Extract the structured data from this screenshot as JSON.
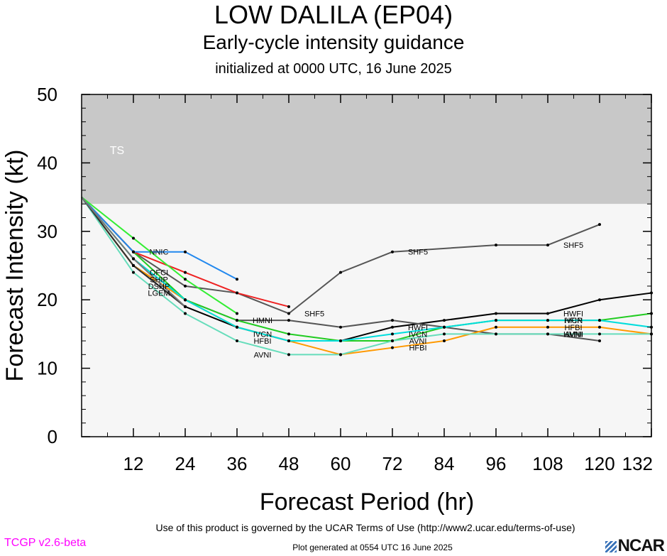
{
  "header": {
    "title": "LOW DALILA (EP04)",
    "subtitle": "Early-cycle intensity guidance",
    "init": "initialized at 0000 UTC, 16 June 2025"
  },
  "footer": {
    "terms": "Use of this product is governed by the UCAR Terms of Use (http://www2.ucar.edu/terms-of-use)",
    "version": "TCGP v2.6-beta",
    "generated": "Plot generated at 0554 UTC   16 June 2025",
    "logo": "NCAR"
  },
  "chart_data": {
    "type": "line",
    "xlabel": "Forecast Period (hr)",
    "ylabel": "Forecast Intensity (kt)",
    "xlim": [
      0,
      132
    ],
    "ylim": [
      0,
      50
    ],
    "xticks": [
      12,
      24,
      36,
      48,
      60,
      72,
      84,
      96,
      108,
      120,
      132
    ],
    "yticks": [
      0,
      10,
      20,
      30,
      40,
      50
    ],
    "bands": [
      {
        "label": "TS",
        "from": 34,
        "to": 50,
        "color": "#c8c8c8"
      },
      {
        "label": "",
        "from": 0,
        "to": 34,
        "color": "#f6f6f6"
      }
    ],
    "series": [
      {
        "name": "SHF5",
        "color": "#555555",
        "x": [
          0,
          12,
          24,
          36,
          48,
          60,
          72,
          96,
          108,
          120
        ],
        "y": [
          35,
          27,
          22,
          21,
          18,
          24,
          27,
          28,
          28,
          31
        ],
        "labels": [
          {
            "x": 48,
            "y": 18
          },
          {
            "x": 72,
            "y": 27
          },
          {
            "x": 108,
            "y": 28
          }
        ]
      },
      {
        "name": "HWFI",
        "color": "#000000",
        "x": [
          0,
          12,
          24,
          36,
          48,
          60,
          72,
          84,
          96,
          108,
          120,
          132
        ],
        "y": [
          35,
          25,
          19,
          16,
          14,
          14,
          16,
          17,
          18,
          18,
          20,
          21
        ],
        "labels": [
          {
            "x": 72,
            "y": 16
          },
          {
            "x": 108,
            "y": 18
          }
        ]
      },
      {
        "name": "HMNI",
        "color": "#555555",
        "x": [
          0,
          12,
          24,
          36,
          48,
          60,
          72,
          84,
          96,
          108,
          120
        ],
        "y": [
          35,
          25,
          20,
          17,
          17,
          16,
          17,
          16,
          15,
          15,
          14
        ],
        "labels": [
          {
            "x": 36,
            "y": 17
          },
          {
            "x": 108,
            "y": 15
          }
        ]
      },
      {
        "name": "IVCN",
        "color": "#22cc22",
        "x": [
          0,
          12,
          24,
          36,
          48,
          60,
          72,
          84,
          96,
          108,
          120,
          132
        ],
        "y": [
          35,
          27,
          20,
          17,
          15,
          14,
          14,
          16,
          17,
          17,
          17,
          18
        ],
        "labels": [
          {
            "x": 36,
            "y": 15
          },
          {
            "x": 72,
            "y": 15
          },
          {
            "x": 108,
            "y": 17
          }
        ]
      },
      {
        "name": "HFBI",
        "color": "#ff9900",
        "x": [
          0,
          12,
          24,
          36,
          48,
          60,
          72,
          84,
          96,
          108,
          120,
          132
        ],
        "y": [
          35,
          25,
          20,
          16,
          14,
          12,
          13,
          14,
          16,
          16,
          16,
          15
        ],
        "labels": [
          {
            "x": 36,
            "y": 14
          },
          {
            "x": 72,
            "y": 13
          },
          {
            "x": 108,
            "y": 16
          }
        ]
      },
      {
        "name": "AVNI",
        "color": "#66ddbb",
        "x": [
          0,
          12,
          24,
          36,
          48,
          60,
          72,
          84,
          96,
          108,
          120,
          132
        ],
        "y": [
          35,
          24,
          18,
          14,
          12,
          12,
          14,
          15,
          15,
          15,
          15,
          15
        ],
        "labels": [
          {
            "x": 36,
            "y": 12
          },
          {
            "x": 72,
            "y": 14
          },
          {
            "x": 108,
            "y": 15
          }
        ]
      },
      {
        "name": "OFCI",
        "color": "#ee2222",
        "x": [
          0,
          12,
          24,
          36,
          48
        ],
        "y": [
          35,
          27,
          24,
          21,
          19
        ],
        "labels": [
          {
            "x": 12,
            "y": 24
          }
        ]
      },
      {
        "name": "NNIC",
        "color": "#2288ee",
        "x": [
          0,
          12,
          24,
          36
        ],
        "y": [
          35,
          27,
          27,
          23
        ],
        "labels": [
          {
            "x": 12,
            "y": 27
          }
        ]
      },
      {
        "name": "SHIP",
        "color": "#33ee33",
        "x": [
          0,
          12,
          24,
          36
        ],
        "y": [
          35,
          29,
          23,
          18
        ],
        "labels": [
          {
            "x": 12,
            "y": 23
          }
        ]
      },
      {
        "name": "DSHP",
        "color": "#00aa00",
        "x": [
          0,
          12,
          24
        ],
        "y": [
          35,
          26,
          20
        ],
        "labels": [
          {
            "x": 12,
            "y": 22
          }
        ]
      },
      {
        "name": "HFIP",
        "color": "#00dddd",
        "x": [
          0,
          12,
          24,
          36,
          48,
          60,
          72,
          84,
          96,
          108,
          120,
          132
        ],
        "y": [
          35,
          26,
          20,
          16,
          14,
          14,
          15,
          16,
          17,
          17,
          17,
          16
        ],
        "labels": [
          {
            "x": 108,
            "y": 17
          }
        ]
      },
      {
        "name": "LGEM",
        "color": "#333333",
        "x": [
          0,
          12,
          24
        ],
        "y": [
          35,
          25,
          19
        ],
        "labels": [
          {
            "x": 12,
            "y": 21
          }
        ]
      },
      {
        "name": "SHF5",
        "color": "#777777",
        "x": [
          0,
          12,
          24
        ],
        "y": [
          35,
          26,
          19
        ],
        "labels": []
      }
    ]
  }
}
